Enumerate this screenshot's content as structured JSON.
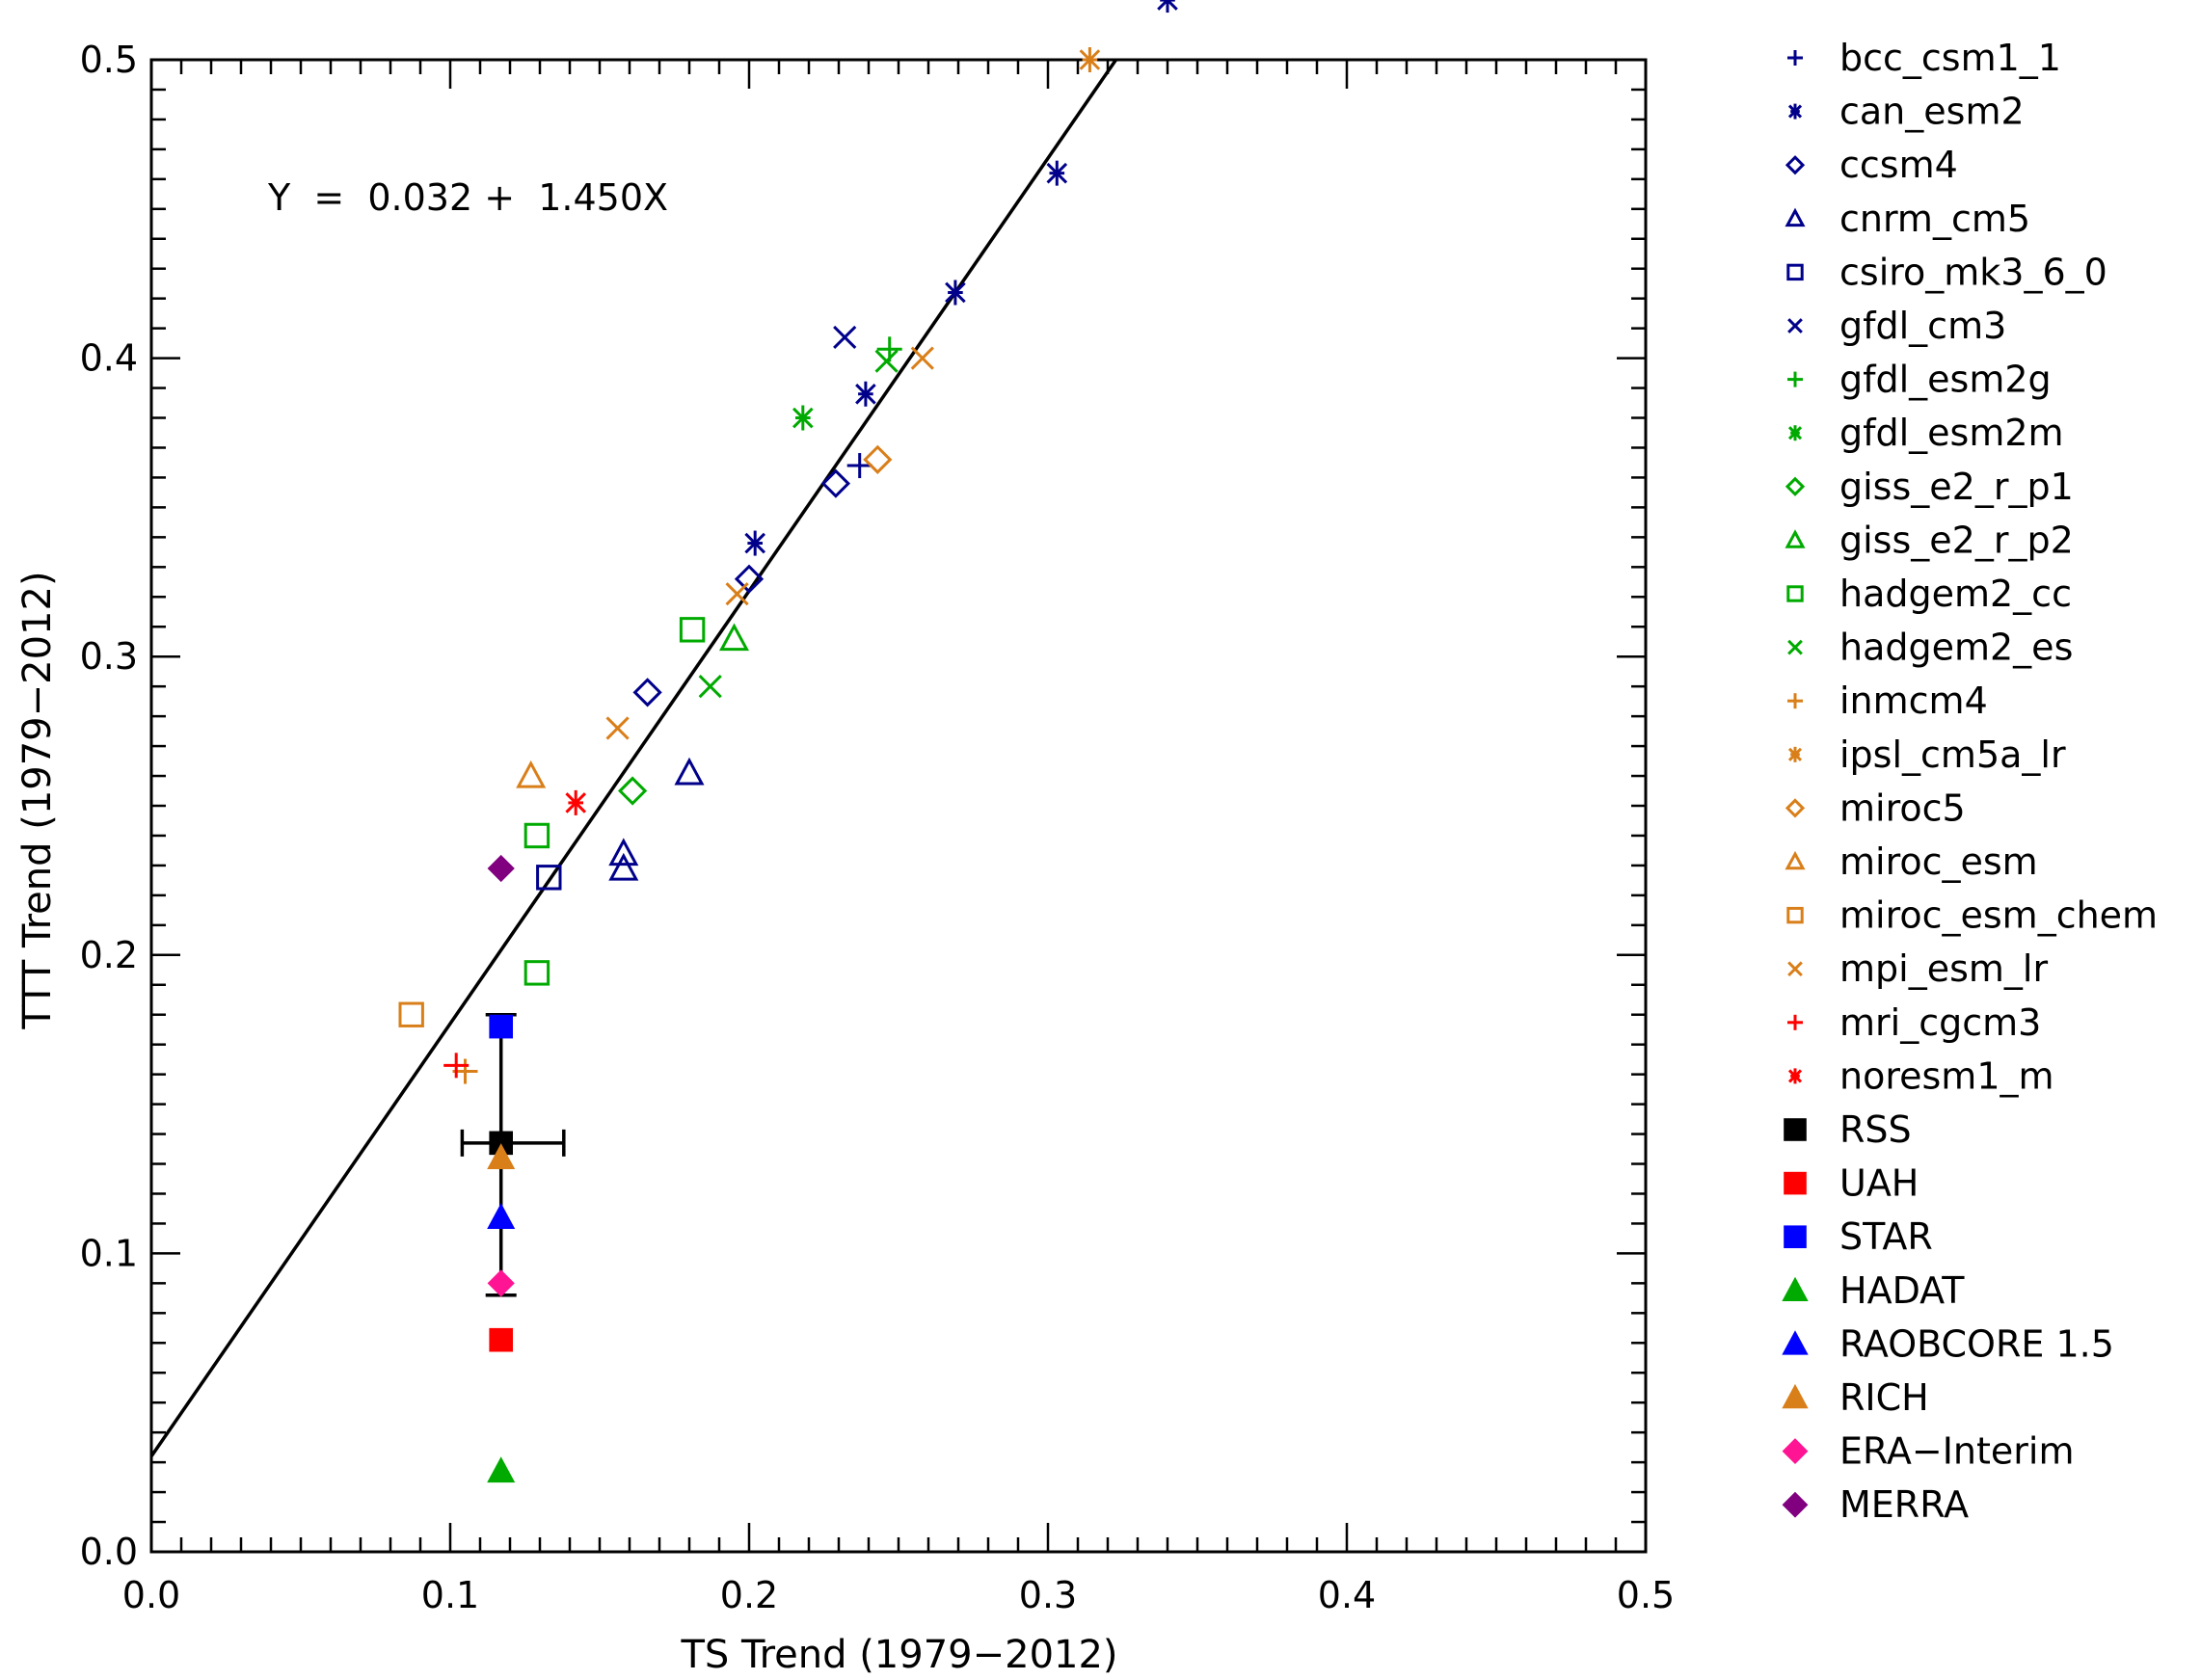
{
  "chart_data": {
    "type": "scatter",
    "xlabel": "TS Trend (1979−2012)",
    "ylabel": "TTT Trend (1979−2012)",
    "xlim": [
      0.0,
      0.5
    ],
    "ylim": [
      0.0,
      0.5
    ],
    "x_ticks": [
      "0.0",
      "0.1",
      "0.2",
      "0.3",
      "0.4",
      "0.5"
    ],
    "y_ticks": [
      "0.0",
      "0.1",
      "0.2",
      "0.3",
      "0.4",
      "0.5"
    ],
    "grid": false,
    "legend_position": "right",
    "annotation": "Y  =  0.032 +  1.450X",
    "fit_line": {
      "intercept": 0.032,
      "slope": 1.45
    },
    "observation_errorbar": {
      "x": 0.117,
      "y": 0.137,
      "x_range": [
        0.104,
        0.138
      ],
      "y_range": [
        0.086,
        0.18
      ]
    },
    "series": [
      {
        "name": "bcc_csm1_1",
        "marker": "plus",
        "color": "#00008b",
        "filled": false,
        "points": [
          [
            0.237,
            0.364
          ]
        ]
      },
      {
        "name": "can_esm2",
        "marker": "star",
        "color": "#00008b",
        "filled": false,
        "points": [
          [
            0.34,
            0.52
          ],
          [
            0.303,
            0.462
          ],
          [
            0.269,
            0.422
          ],
          [
            0.239,
            0.388
          ],
          [
            0.202,
            0.338
          ]
        ]
      },
      {
        "name": "ccsm4",
        "marker": "diamond",
        "color": "#00008b",
        "filled": false,
        "points": [
          [
            0.229,
            0.358
          ],
          [
            0.2,
            0.326
          ],
          [
            0.166,
            0.288
          ]
        ]
      },
      {
        "name": "cnrm_cm5",
        "marker": "triangle",
        "color": "#00008b",
        "filled": false,
        "points": [
          [
            0.18,
            0.261
          ],
          [
            0.158,
            0.234
          ],
          [
            0.158,
            0.229
          ]
        ]
      },
      {
        "name": "csiro_mk3_6_0",
        "marker": "square",
        "color": "#00008b",
        "filled": false,
        "points": [
          [
            0.133,
            0.226
          ]
        ]
      },
      {
        "name": "gfdl_cm3",
        "marker": "x",
        "color": "#00008b",
        "filled": false,
        "points": [
          [
            0.232,
            0.407
          ]
        ]
      },
      {
        "name": "gfdl_esm2g",
        "marker": "plus",
        "color": "#00aa00",
        "filled": false,
        "points": [
          [
            0.247,
            0.403
          ]
        ]
      },
      {
        "name": "gfdl_esm2m",
        "marker": "star",
        "color": "#00aa00",
        "filled": false,
        "points": [
          [
            0.218,
            0.38
          ]
        ]
      },
      {
        "name": "giss_e2_r_p1",
        "marker": "diamond",
        "color": "#00aa00",
        "filled": false,
        "points": [
          [
            0.161,
            0.255
          ]
        ]
      },
      {
        "name": "giss_e2_r_p2",
        "marker": "triangle",
        "color": "#00aa00",
        "filled": false,
        "points": [
          [
            0.195,
            0.306
          ]
        ]
      },
      {
        "name": "hadgem2_cc",
        "marker": "square",
        "color": "#00aa00",
        "filled": false,
        "points": [
          [
            0.181,
            0.309
          ],
          [
            0.129,
            0.24
          ],
          [
            0.129,
            0.194
          ]
        ]
      },
      {
        "name": "hadgem2_es",
        "marker": "x",
        "color": "#00aa00",
        "filled": false,
        "points": [
          [
            0.246,
            0.399
          ],
          [
            0.187,
            0.29
          ]
        ]
      },
      {
        "name": "inmcm4",
        "marker": "plus",
        "color": "#d97f1a",
        "filled": false,
        "points": [
          [
            0.105,
            0.161
          ]
        ]
      },
      {
        "name": "ipsl_cm5a_lr",
        "marker": "star",
        "color": "#d97f1a",
        "filled": false,
        "points": [
          [
            0.314,
            0.5
          ]
        ]
      },
      {
        "name": "miroc5",
        "marker": "diamond",
        "color": "#d97f1a",
        "filled": false,
        "points": [
          [
            0.243,
            0.366
          ]
        ]
      },
      {
        "name": "miroc_esm",
        "marker": "triangle",
        "color": "#d97f1a",
        "filled": false,
        "points": [
          [
            0.127,
            0.26
          ]
        ]
      },
      {
        "name": "miroc_esm_chem",
        "marker": "square",
        "color": "#d97f1a",
        "filled": false,
        "points": [
          [
            0.087,
            0.18
          ]
        ]
      },
      {
        "name": "mpi_esm_lr",
        "marker": "x",
        "color": "#d97f1a",
        "filled": false,
        "points": [
          [
            0.258,
            0.4
          ],
          [
            0.196,
            0.321
          ],
          [
            0.156,
            0.276
          ]
        ]
      },
      {
        "name": "mri_cgcm3",
        "marker": "plus",
        "color": "#ff0000",
        "filled": false,
        "points": [
          [
            0.102,
            0.163
          ]
        ]
      },
      {
        "name": "noresm1_m",
        "marker": "star",
        "color": "#ff0000",
        "filled": false,
        "points": [
          [
            0.142,
            0.251
          ]
        ]
      },
      {
        "name": "RSS",
        "marker": "square",
        "color": "#000000",
        "filled": true,
        "points": [
          [
            0.117,
            0.137
          ]
        ]
      },
      {
        "name": "UAH",
        "marker": "square",
        "color": "#ff0000",
        "filled": true,
        "points": [
          [
            0.117,
            0.071
          ]
        ]
      },
      {
        "name": "STAR",
        "marker": "square",
        "color": "#0000ff",
        "filled": true,
        "points": [
          [
            0.117,
            0.176
          ]
        ]
      },
      {
        "name": "HADAT",
        "marker": "triangle",
        "color": "#00aa00",
        "filled": true,
        "points": [
          [
            0.117,
            0.027
          ]
        ]
      },
      {
        "name": "RAOBCORE 1.5",
        "marker": "triangle",
        "color": "#0000ff",
        "filled": true,
        "points": [
          [
            0.117,
            0.112
          ]
        ]
      },
      {
        "name": "RICH",
        "marker": "triangle",
        "color": "#d97f1a",
        "filled": true,
        "points": [
          [
            0.117,
            0.132
          ]
        ]
      },
      {
        "name": "ERA−Interim",
        "marker": "diamond",
        "color": "#ff1493",
        "filled": true,
        "points": [
          [
            0.117,
            0.09
          ]
        ]
      },
      {
        "name": "MERRA",
        "marker": "diamond",
        "color": "#800080",
        "filled": true,
        "points": [
          [
            0.117,
            0.229
          ]
        ]
      }
    ]
  }
}
